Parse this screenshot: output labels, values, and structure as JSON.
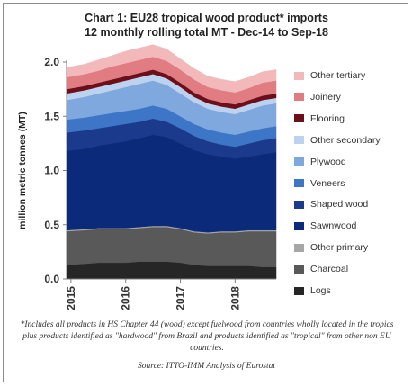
{
  "title": {
    "line1": "Chart 1: EU28 tropical wood product* imports",
    "line2": "12 monthly rolling total MT - Dec-14 to Sep-18"
  },
  "footnote": "*Includes all products in HS Chapter 44 (wood) except fuelwood from countries wholly located in the tropics plus products identified as \"hardwood\" from Brazil and products identified as \"tropical\" from other non EU countries.",
  "source": "Source: ITTO-IMM Analysis of Eurostat",
  "chart_data": {
    "type": "area",
    "stacked": true,
    "title": "Chart 1: EU28 tropical wood product* imports",
    "subtitle": "12 monthly rolling total MT - Dec-14 to Sep-18",
    "ylabel": "million metric tonnes (MT)",
    "xlabel": "",
    "ylim": [
      0,
      2.0
    ],
    "yticks": [
      "0.0",
      "0.5",
      "1.0",
      "1.5",
      "2.0"
    ],
    "xticks": [
      "2015",
      "2016",
      "2017",
      "2018"
    ],
    "x": [
      2014.92,
      2015.25,
      2015.5,
      2015.75,
      2016.0,
      2016.25,
      2016.5,
      2016.75,
      2017.0,
      2017.25,
      2017.5,
      2017.75,
      2018.0,
      2018.25,
      2018.5,
      2018.75
    ],
    "grid": false,
    "legend_position": "right",
    "series": [
      {
        "name": "Logs",
        "color": "#262626",
        "values": [
          0.13,
          0.14,
          0.15,
          0.15,
          0.15,
          0.16,
          0.16,
          0.16,
          0.15,
          0.13,
          0.12,
          0.12,
          0.12,
          0.12,
          0.11,
          0.11
        ]
      },
      {
        "name": "Charcoal",
        "color": "#595959",
        "values": [
          0.31,
          0.31,
          0.31,
          0.31,
          0.31,
          0.31,
          0.32,
          0.32,
          0.31,
          0.3,
          0.3,
          0.31,
          0.31,
          0.32,
          0.33,
          0.33
        ]
      },
      {
        "name": "Other primary",
        "color": "#a6a6a6",
        "values": [
          0.01,
          0.01,
          0.01,
          0.01,
          0.01,
          0.01,
          0.01,
          0.01,
          0.01,
          0.01,
          0.01,
          0.01,
          0.01,
          0.01,
          0.01,
          0.01
        ]
      },
      {
        "name": "Sawnwood",
        "color": "#0b2a7a",
        "values": [
          0.73,
          0.74,
          0.76,
          0.78,
          0.8,
          0.82,
          0.84,
          0.82,
          0.78,
          0.75,
          0.72,
          0.69,
          0.67,
          0.68,
          0.7,
          0.72
        ]
      },
      {
        "name": "Shaped wood",
        "color": "#1c3a8c",
        "values": [
          0.17,
          0.17,
          0.16,
          0.16,
          0.16,
          0.15,
          0.15,
          0.14,
          0.14,
          0.13,
          0.12,
          0.11,
          0.11,
          0.12,
          0.13,
          0.13
        ]
      },
      {
        "name": "Veneers",
        "color": "#3d76c6",
        "values": [
          0.12,
          0.12,
          0.12,
          0.12,
          0.12,
          0.12,
          0.12,
          0.12,
          0.11,
          0.11,
          0.11,
          0.11,
          0.11,
          0.11,
          0.11,
          0.11
        ]
      },
      {
        "name": "Plywood",
        "color": "#7fa8de",
        "values": [
          0.18,
          0.19,
          0.2,
          0.21,
          0.22,
          0.23,
          0.23,
          0.22,
          0.21,
          0.2,
          0.19,
          0.19,
          0.19,
          0.2,
          0.21,
          0.21
        ]
      },
      {
        "name": "Other secondary",
        "color": "#bcd2ef",
        "values": [
          0.06,
          0.06,
          0.06,
          0.06,
          0.06,
          0.06,
          0.06,
          0.06,
          0.06,
          0.05,
          0.05,
          0.05,
          0.05,
          0.05,
          0.05,
          0.05
        ]
      },
      {
        "name": "Flooring",
        "color": "#6b0f1a",
        "values": [
          0.04,
          0.04,
          0.04,
          0.04,
          0.04,
          0.04,
          0.04,
          0.04,
          0.04,
          0.04,
          0.04,
          0.04,
          0.04,
          0.04,
          0.04,
          0.04
        ]
      },
      {
        "name": "Joinery",
        "color": "#e07c82",
        "values": [
          0.11,
          0.11,
          0.11,
          0.12,
          0.12,
          0.12,
          0.12,
          0.12,
          0.12,
          0.12,
          0.11,
          0.11,
          0.11,
          0.11,
          0.12,
          0.12
        ]
      },
      {
        "name": "Other tertiary",
        "color": "#f2b8ba",
        "values": [
          0.09,
          0.09,
          0.1,
          0.1,
          0.11,
          0.11,
          0.11,
          0.11,
          0.1,
          0.1,
          0.1,
          0.1,
          0.1,
          0.1,
          0.1,
          0.1
        ]
      }
    ]
  }
}
